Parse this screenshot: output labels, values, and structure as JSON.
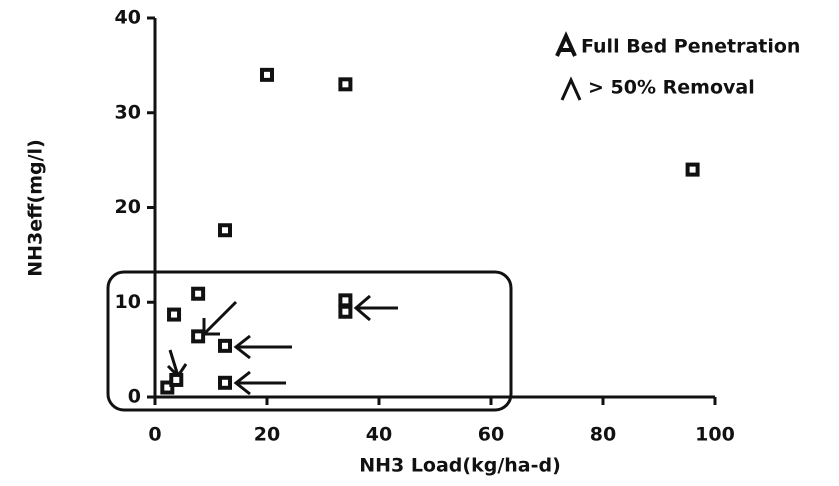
{
  "chart_data": {
    "type": "scatter",
    "x_label": "NH3 Load(kg/ha-d)",
    "y_label": "NH3eff(mg/l)",
    "annotations": [
      "Full Bed Penetration",
      "> 50% Removal"
    ],
    "x": [
      2.2,
      3.4,
      3.8,
      7.7,
      7.7,
      12.5,
      12.5,
      12.5,
      20,
      34,
      34,
      34,
      96
    ],
    "values": [
      1.0,
      8.7,
      1.8,
      10.9,
      6.4,
      17.6,
      5.4,
      1.5,
      34,
      33,
      10.2,
      9,
      24
    ],
    "color": "#111111",
    "xlim": [
      0,
      100
    ],
    "xticks": [
      0,
      20,
      40,
      60,
      80,
      100
    ],
    "ylim": [
      0,
      40
    ],
    "yticks": [
      0,
      10,
      20,
      30,
      40
    ]
  }
}
